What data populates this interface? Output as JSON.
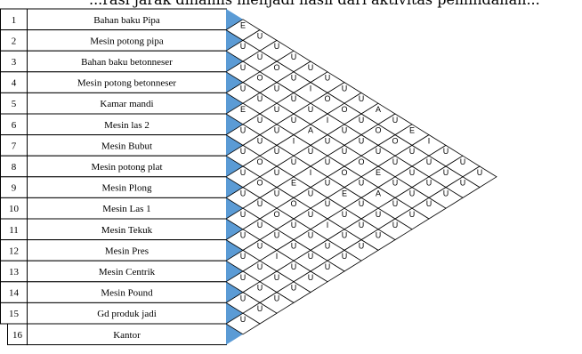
{
  "header_text": "...rasi jarak dinamis menjadi hasil dari aktivitas pemindahan...",
  "colors": {
    "accent": "#5b9bd5",
    "line": "#000000",
    "cell": "#ffffff"
  },
  "departments": [
    {
      "no": "1",
      "name": "Bahan  baku Pipa"
    },
    {
      "no": "2",
      "name": "Mesin potong pipa"
    },
    {
      "no": "3",
      "name": "Bahan baku betonneser"
    },
    {
      "no": "4",
      "name": "Mesin potong betonneser"
    },
    {
      "no": "5",
      "name": "Kamar mandi"
    },
    {
      "no": "6",
      "name": "Mesin las 2"
    },
    {
      "no": "7",
      "name": "Mesin Bubut"
    },
    {
      "no": "8",
      "name": "Mesin potong plat"
    },
    {
      "no": "9",
      "name": "Mesin Plong"
    },
    {
      "no": "10",
      "name": "Mesin Las 1"
    },
    {
      "no": "11",
      "name": "Mesin Tekuk"
    },
    {
      "no": "12",
      "name": "Mesin Pres"
    },
    {
      "no": "13",
      "name": "Mesin Centrik"
    },
    {
      "no": "14",
      "name": "Mesin Pound"
    },
    {
      "no": "15",
      "name": "Gd produk jadi"
    },
    {
      "no": "16",
      "name": "Kantor"
    }
  ],
  "relationships": [
    [
      "E",
      "U",
      "U",
      "U",
      "U",
      "U",
      "U",
      "U",
      "A",
      "U",
      "E",
      "I",
      "U",
      "U",
      "U"
    ],
    [
      "U",
      "U",
      "O",
      "U",
      "I",
      "O",
      "O",
      "U",
      "O",
      "O",
      "U",
      "U",
      "U",
      "U"
    ],
    [
      "U",
      "O",
      "U",
      "U",
      "U",
      "I",
      "U",
      "U",
      "U",
      "U",
      "U",
      "U",
      "U"
    ],
    [
      "U",
      "U",
      "U",
      "U",
      "A",
      "U",
      "U",
      "O",
      "E",
      "U",
      "U",
      "U"
    ],
    [
      "E",
      "U",
      "U",
      "I",
      "U",
      "U",
      "O",
      "U",
      "A",
      "U",
      "U"
    ],
    [
      "U",
      "U",
      "U",
      "U",
      "I",
      "U",
      "E",
      "U",
      "U",
      "U"
    ],
    [
      "U",
      "O",
      "U",
      "E",
      "U",
      "U",
      "U",
      "U",
      "U"
    ],
    [
      "U",
      "O",
      "U",
      "O",
      "U",
      "I",
      "U",
      "U"
    ],
    [
      "U",
      "U",
      "O",
      "U",
      "U",
      "U",
      "U"
    ],
    [
      "U",
      "U",
      "U",
      "U",
      "U",
      "U"
    ],
    [
      "U",
      "U",
      "I",
      "U",
      "U"
    ],
    [
      "U",
      "U",
      "U",
      "U"
    ],
    [
      "U",
      "U",
      "U"
    ],
    [
      "U",
      "U"
    ],
    [
      "U"
    ]
  ]
}
